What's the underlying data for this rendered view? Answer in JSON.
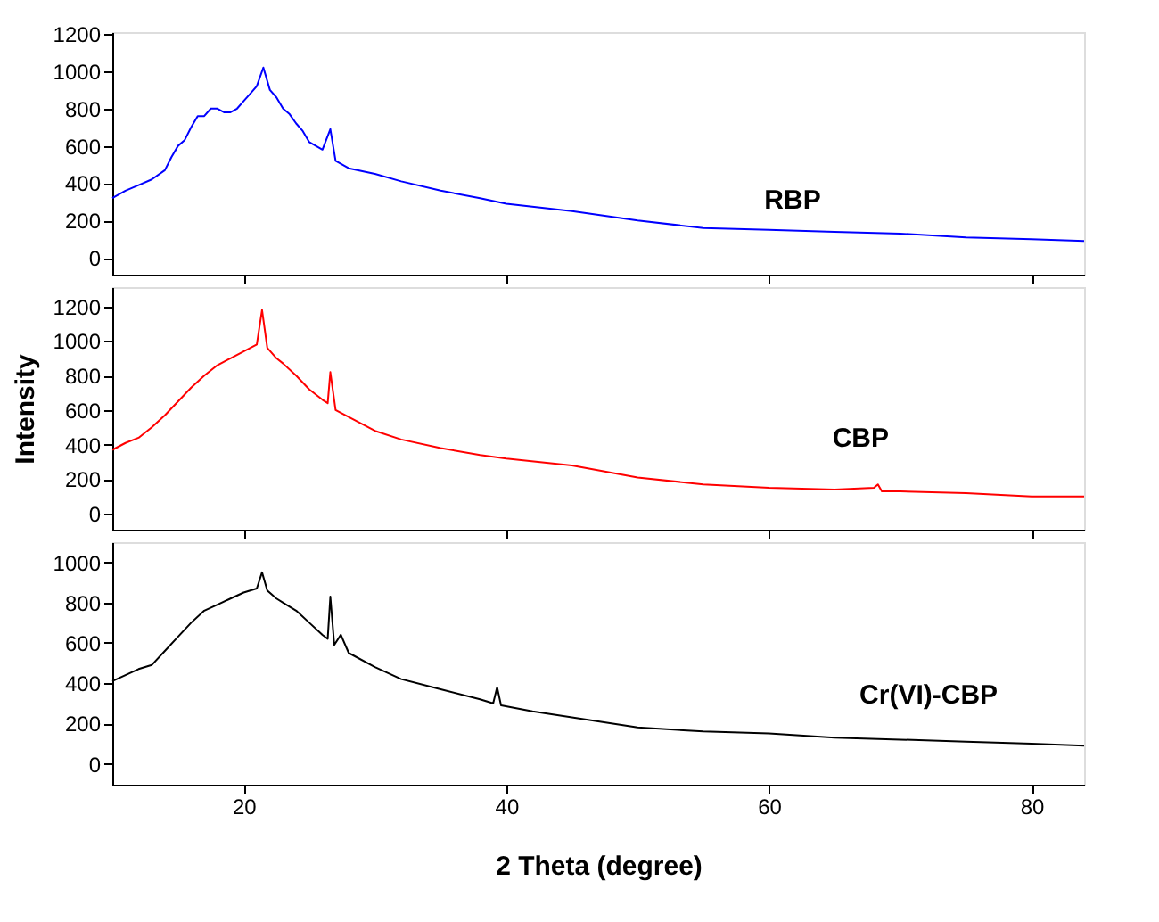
{
  "chart_data": [
    {
      "type": "line",
      "xlim": [
        10,
        84
      ],
      "xticks": [
        20,
        40,
        60,
        80
      ],
      "ylim": [
        -90,
        1210
      ],
      "yticks": [
        0,
        200,
        400,
        600,
        800,
        1000,
        1200
      ],
      "tick_labels": "y",
      "grid": false,
      "series": [
        {
          "name": "RBP",
          "color": "#0000ff",
          "x": [
            10,
            11,
            12,
            13,
            14,
            14.5,
            15,
            15.5,
            16,
            16.5,
            17,
            17.5,
            18,
            18.5,
            19,
            19.5,
            20,
            20.5,
            21,
            21.5,
            22,
            22.5,
            23,
            23.5,
            24,
            24.5,
            25,
            25.5,
            26,
            26.6,
            27,
            28,
            30,
            32,
            35,
            38,
            40,
            45,
            50,
            55,
            60,
            65,
            70,
            75,
            80,
            84
          ],
          "values": [
            320,
            360,
            390,
            420,
            470,
            540,
            600,
            630,
            700,
            760,
            760,
            800,
            800,
            780,
            780,
            800,
            840,
            880,
            920,
            1020,
            900,
            860,
            800,
            770,
            720,
            680,
            620,
            600,
            580,
            690,
            520,
            480,
            450,
            410,
            360,
            320,
            290,
            250,
            200,
            160,
            150,
            140,
            130,
            110,
            100,
            90
          ]
        }
      ]
    },
    {
      "type": "line",
      "xlim": [
        10,
        84
      ],
      "xticks": [
        20,
        40,
        60,
        80
      ],
      "ylim": [
        -92,
        1312
      ],
      "yticks": [
        0,
        200,
        400,
        600,
        800,
        1000,
        1200
      ],
      "tick_labels": "y",
      "grid": false,
      "ylabel": "Intensity",
      "series": [
        {
          "name": "CBP",
          "color": "#ff0000",
          "x": [
            10,
            11,
            12,
            13,
            14,
            15,
            16,
            17,
            18,
            19,
            20,
            21,
            21.4,
            21.8,
            22.5,
            23,
            24,
            25,
            26,
            26.4,
            26.6,
            27,
            28,
            30,
            32,
            35,
            38,
            40,
            45,
            50,
            55,
            60,
            65,
            68,
            68.3,
            68.6,
            70,
            75,
            80,
            84
          ],
          "values": [
            370,
            410,
            440,
            500,
            570,
            650,
            730,
            800,
            860,
            900,
            940,
            980,
            1180,
            960,
            900,
            870,
            800,
            720,
            660,
            640,
            820,
            600,
            560,
            480,
            430,
            380,
            340,
            320,
            280,
            210,
            170,
            150,
            140,
            150,
            170,
            130,
            130,
            120,
            100,
            100
          ]
        }
      ]
    },
    {
      "type": "line",
      "xlim": [
        10,
        84
      ],
      "xticks": [
        20,
        40,
        60,
        80
      ],
      "ylim": [
        -104,
        1100
      ],
      "yticks": [
        0,
        200,
        400,
        600,
        800,
        1000
      ],
      "grid": false,
      "xlabel": "2 Theta (degree)",
      "series": [
        {
          "name": "Cr(VI)-CBP",
          "color": "#000000",
          "x": [
            10,
            11,
            12,
            13,
            14,
            15,
            16,
            17,
            18,
            19,
            20,
            21,
            21.4,
            21.8,
            22.5,
            23,
            24,
            25,
            26,
            26.4,
            26.6,
            26.9,
            27.4,
            28,
            30,
            32,
            35,
            38,
            39,
            39.3,
            39.6,
            42,
            45,
            50,
            55,
            60,
            65,
            70,
            75,
            80,
            84
          ],
          "values": [
            410,
            440,
            470,
            490,
            560,
            630,
            700,
            760,
            790,
            820,
            850,
            870,
            950,
            860,
            820,
            800,
            760,
            700,
            640,
            620,
            830,
            590,
            640,
            550,
            480,
            420,
            370,
            320,
            300,
            380,
            290,
            260,
            230,
            180,
            160,
            150,
            130,
            120,
            110,
            100,
            90
          ]
        }
      ]
    }
  ]
}
